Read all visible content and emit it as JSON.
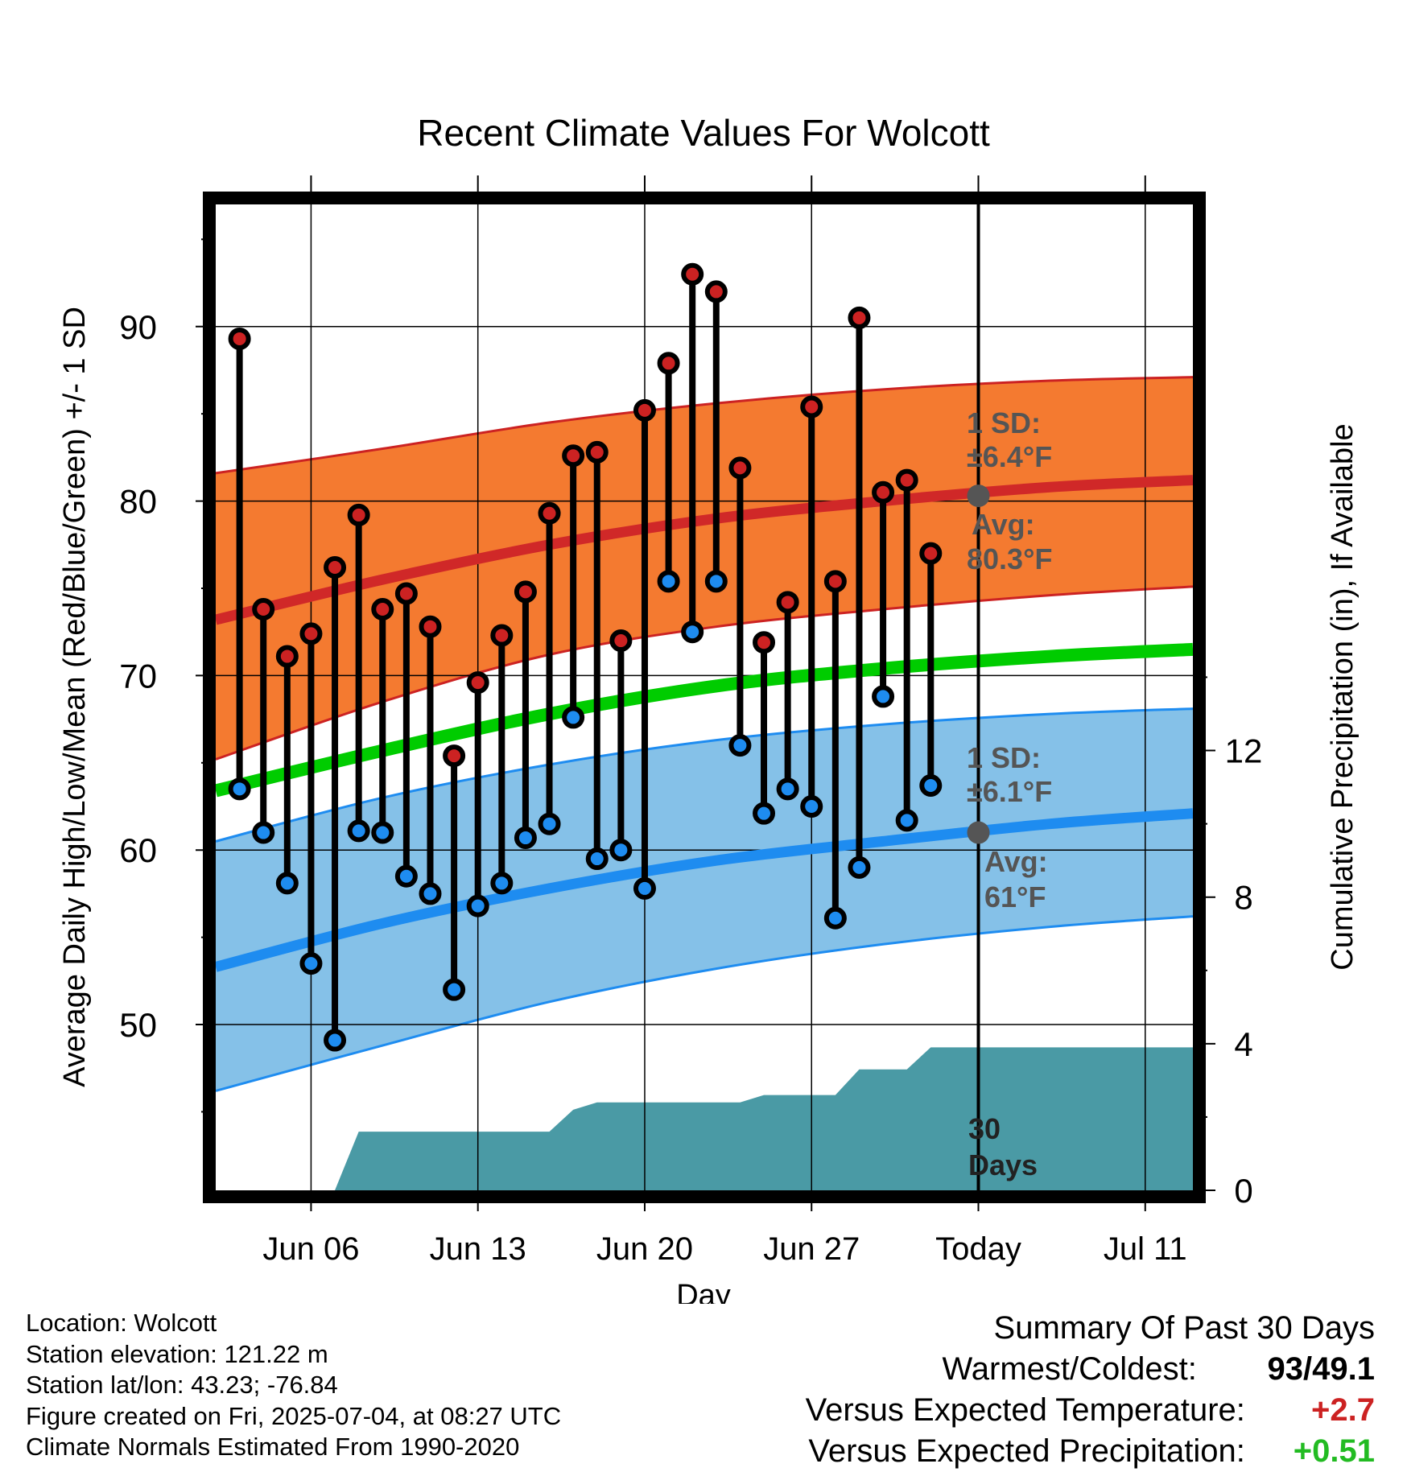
{
  "chart_data": {
    "type": "line",
    "title": "Recent Climate Values For Wolcott",
    "xlabel": "Day",
    "ylabel": "Average Daily High/Low/Mean (Red/Blue/Green) +/- 1 SD",
    "y2label": "Cumulative Precipitation (in), If Available",
    "ylim": [
      40.5,
      97
    ],
    "y2lim": [
      0,
      26.9
    ],
    "xlim": [
      "2025-06-02",
      "2025-07-13"
    ],
    "grid": true,
    "yticks": [
      50,
      60,
      70,
      80,
      90
    ],
    "y2ticks": [
      0,
      4,
      8,
      12
    ],
    "xticks": [
      {
        "date": "2025-06-06",
        "label": "Jun 06"
      },
      {
        "date": "2025-06-13",
        "label": "Jun 13"
      },
      {
        "date": "2025-06-20",
        "label": "Jun 20"
      },
      {
        "date": "2025-06-27",
        "label": "Jun 27"
      },
      {
        "date": "2025-07-04",
        "label": "Today"
      },
      {
        "date": "2025-07-11",
        "label": "Jul 11"
      }
    ],
    "today": "2025-07-04",
    "colors": {
      "high_band": "#f47a30",
      "high_band_edge": "#cc2222",
      "high_mean": "#d02828",
      "low_band": "#85c1e8",
      "low_band_edge": "#1e8cf0",
      "low_mean": "#1e8cf0",
      "daily_mean": "#00cc00",
      "precip": "#4a9aa5",
      "high_dot": "#cc2222",
      "low_dot": "#1e8cf0",
      "marker": "#555555",
      "positive_temp": "#cc2222",
      "positive_precip": "#22bb22"
    },
    "normals": {
      "dates": [
        "2025-06-02",
        "2025-06-09",
        "2025-06-16",
        "2025-06-23",
        "2025-06-30",
        "2025-07-07",
        "2025-07-13"
      ],
      "high_mean": [
        73.2,
        75.5,
        77.5,
        79.0,
        80.0,
        80.8,
        81.2
      ],
      "high_upper": [
        81.6,
        83.0,
        84.5,
        85.6,
        86.4,
        86.9,
        87.1
      ],
      "high_lower": [
        65.2,
        68.5,
        71.2,
        72.8,
        73.8,
        74.6,
        75.1
      ],
      "daily_mean": [
        63.4,
        65.7,
        67.8,
        69.4,
        70.4,
        71.1,
        71.5
      ],
      "low_mean": [
        53.3,
        55.8,
        57.8,
        59.4,
        60.5,
        61.5,
        62.1
      ],
      "low_upper": [
        60.5,
        63.0,
        64.9,
        66.3,
        67.2,
        67.8,
        68.1
      ],
      "low_lower": [
        46.2,
        48.8,
        51.3,
        53.2,
        54.6,
        55.6,
        56.2
      ]
    },
    "daily": [
      {
        "date": "2025-06-03",
        "high": 89.3,
        "low": 63.5
      },
      {
        "date": "2025-06-04",
        "high": 73.8,
        "low": 61.0
      },
      {
        "date": "2025-06-05",
        "high": 71.1,
        "low": 58.1
      },
      {
        "date": "2025-06-06",
        "high": 72.4,
        "low": 53.5
      },
      {
        "date": "2025-06-07",
        "high": 76.2,
        "low": 49.1
      },
      {
        "date": "2025-06-08",
        "high": 79.2,
        "low": 61.1
      },
      {
        "date": "2025-06-09",
        "high": 73.8,
        "low": 61.0
      },
      {
        "date": "2025-06-10",
        "high": 74.7,
        "low": 58.5
      },
      {
        "date": "2025-06-11",
        "high": 72.8,
        "low": 57.5
      },
      {
        "date": "2025-06-12",
        "high": 65.4,
        "low": 52.0
      },
      {
        "date": "2025-06-13",
        "high": 69.6,
        "low": 56.8
      },
      {
        "date": "2025-06-14",
        "high": 72.3,
        "low": 58.1
      },
      {
        "date": "2025-06-15",
        "high": 74.8,
        "low": 60.7
      },
      {
        "date": "2025-06-16",
        "high": 79.3,
        "low": 61.5
      },
      {
        "date": "2025-06-17",
        "high": 82.6,
        "low": 67.6
      },
      {
        "date": "2025-06-18",
        "high": 82.8,
        "low": 59.5
      },
      {
        "date": "2025-06-19",
        "high": 72.0,
        "low": 60.0
      },
      {
        "date": "2025-06-20",
        "high": 85.2,
        "low": 57.8
      },
      {
        "date": "2025-06-21",
        "high": 87.9,
        "low": 75.4
      },
      {
        "date": "2025-06-22",
        "high": 93.0,
        "low": 72.5
      },
      {
        "date": "2025-06-23",
        "high": 92.0,
        "low": 75.4
      },
      {
        "date": "2025-06-24",
        "high": 81.9,
        "low": 66.0
      },
      {
        "date": "2025-06-25",
        "high": 71.9,
        "low": 62.1
      },
      {
        "date": "2025-06-26",
        "high": 74.2,
        "low": 63.5
      },
      {
        "date": "2025-06-27",
        "high": 85.4,
        "low": 62.5
      },
      {
        "date": "2025-06-28",
        "high": 75.4,
        "low": 56.1
      },
      {
        "date": "2025-06-29",
        "high": 90.5,
        "low": 59.0
      },
      {
        "date": "2025-06-30",
        "high": 80.5,
        "low": 68.8
      },
      {
        "date": "2025-07-01",
        "high": 81.2,
        "low": 61.7
      },
      {
        "date": "2025-07-02",
        "high": 77.0,
        "low": 63.7
      }
    ],
    "precip_cumulative": [
      {
        "date": "2025-06-07",
        "value": 0.0
      },
      {
        "date": "2025-06-08",
        "value": 1.6
      },
      {
        "date": "2025-06-13",
        "value": 1.6
      },
      {
        "date": "2025-06-16",
        "value": 1.6
      },
      {
        "date": "2025-06-17",
        "value": 2.2
      },
      {
        "date": "2025-06-18",
        "value": 2.4
      },
      {
        "date": "2025-06-24",
        "value": 2.4
      },
      {
        "date": "2025-06-25",
        "value": 2.6
      },
      {
        "date": "2025-06-28",
        "value": 2.6
      },
      {
        "date": "2025-06-29",
        "value": 3.3
      },
      {
        "date": "2025-07-01",
        "value": 3.3
      },
      {
        "date": "2025-07-02",
        "value": 3.9
      },
      {
        "date": "2025-07-13",
        "value": 3.9
      }
    ],
    "annotations": {
      "high_sd_title": "1 SD:",
      "high_sd_value": "±6.4°F",
      "high_avg_title": "Avg:",
      "high_avg_value": "80.3°F",
      "high_avg": 80.3,
      "low_sd_title": "1 SD:",
      "low_sd_value": "±6.1°F",
      "low_avg_title": "Avg:",
      "low_avg_value": "61°F",
      "low_avg": 61,
      "days_number": "30",
      "days_word": "Days"
    }
  },
  "station": {
    "location": "Location: Wolcott",
    "elevation": "Station elevation: 121.22 m",
    "latlon": "Station lat/lon: 43.23; -76.84",
    "created": "Figure created on Fri, 2025-07-04, at 08:27 UTC",
    "normals": "Climate Normals Estimated From 1990-2020"
  },
  "summary": {
    "title": "Summary Of Past 30 Days",
    "warm_cold_label": "Warmest/Coldest:",
    "warm_cold_value": "93/49.1",
    "temp_label": "Versus Expected Temperature:",
    "temp_value": "+2.7",
    "precip_label": "Versus Expected Precipitation:",
    "precip_value": "+0.51"
  }
}
